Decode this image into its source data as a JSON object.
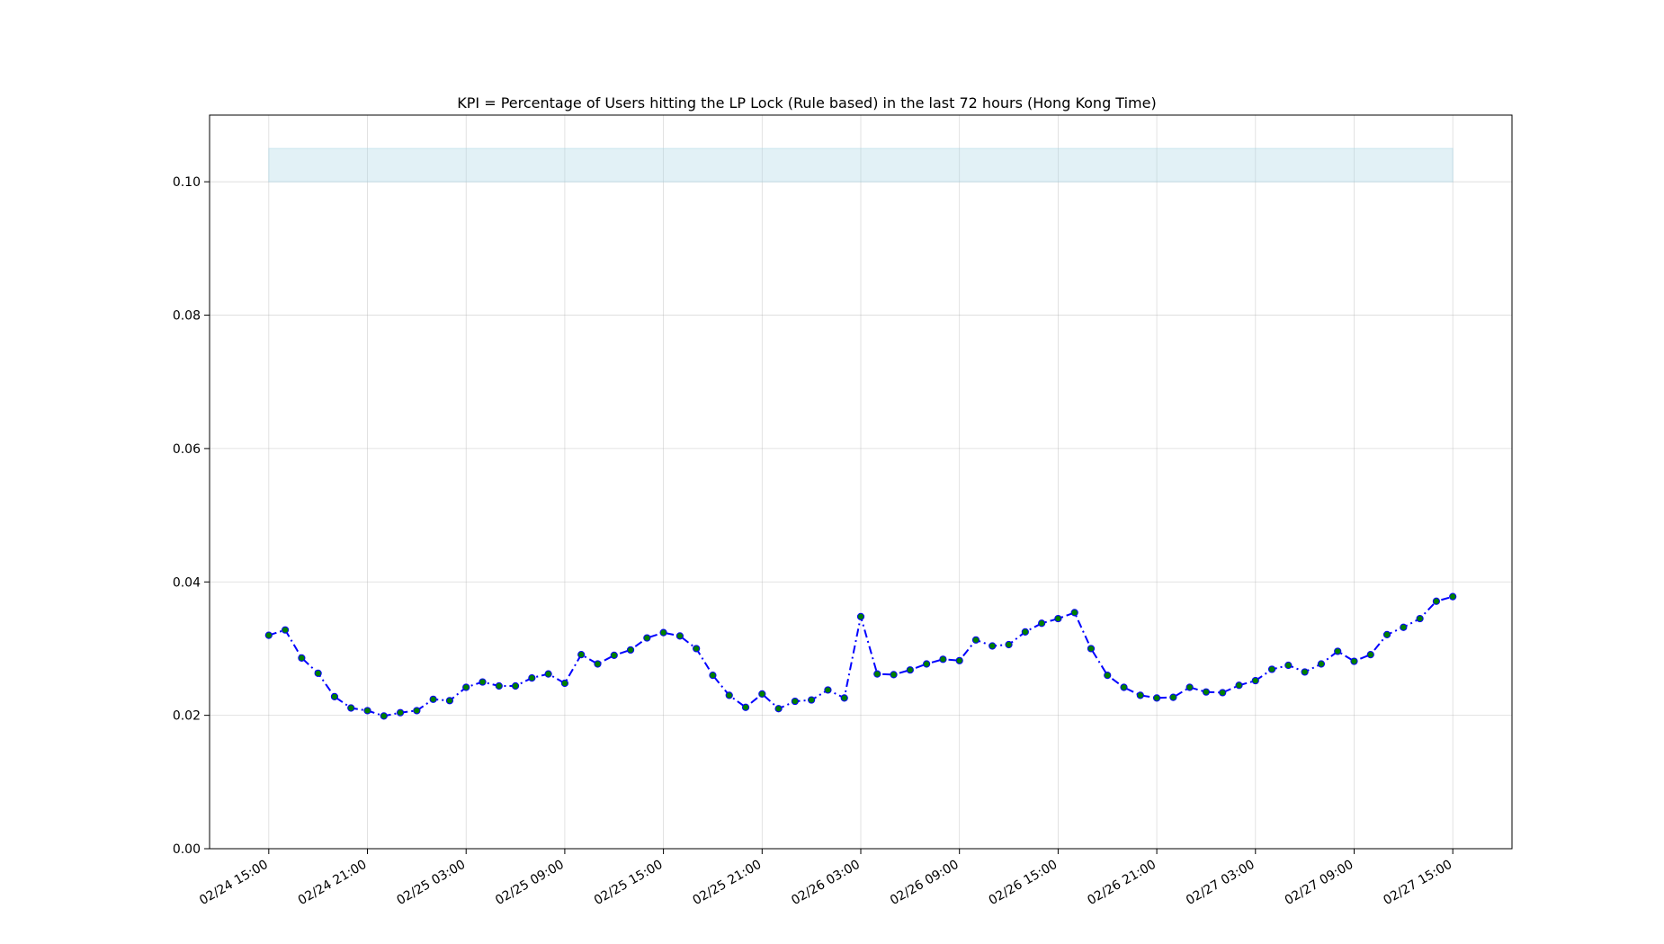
{
  "chart_data": {
    "type": "line",
    "title": "KPI = Percentage of Users hitting the LP Lock (Rule based) in the last 72 hours (Hong Kong Time)",
    "xlabel": "",
    "ylabel": "",
    "ylim": [
      0.0,
      0.11
    ],
    "xlim_hours": [
      -3.6,
      75.6
    ],
    "grid": true,
    "legend": "none",
    "band": {
      "y": [
        0.1,
        0.105
      ],
      "x_hours": [
        0,
        72
      ],
      "color": "#add8e6"
    },
    "line_color": "#0000ff",
    "marker_color": "#008000",
    "x_start": "02/24 15:00",
    "y_ticks": [
      {
        "value": 0.0,
        "label": "0.00"
      },
      {
        "value": 0.02,
        "label": "0.02"
      },
      {
        "value": 0.04,
        "label": "0.04"
      },
      {
        "value": 0.06,
        "label": "0.06"
      },
      {
        "value": 0.08,
        "label": "0.08"
      },
      {
        "value": 0.1,
        "label": "0.10"
      }
    ],
    "x_ticks": [
      {
        "hour": 0,
        "label": "02/24 15:00"
      },
      {
        "hour": 6,
        "label": "02/24 21:00"
      },
      {
        "hour": 12,
        "label": "02/25 03:00"
      },
      {
        "hour": 18,
        "label": "02/25 09:00"
      },
      {
        "hour": 24,
        "label": "02/25 15:00"
      },
      {
        "hour": 30,
        "label": "02/25 21:00"
      },
      {
        "hour": 36,
        "label": "02/26 03:00"
      },
      {
        "hour": 42,
        "label": "02/26 09:00"
      },
      {
        "hour": 48,
        "label": "02/26 15:00"
      },
      {
        "hour": 54,
        "label": "02/26 21:00"
      },
      {
        "hour": 60,
        "label": "02/27 03:00"
      },
      {
        "hour": 66,
        "label": "02/27 09:00"
      },
      {
        "hour": 72,
        "label": "02/27 15:00"
      }
    ],
    "series": [
      {
        "values": [
          0.032,
          0.0328,
          0.0286,
          0.0263,
          0.0228,
          0.0211,
          0.0207,
          0.0199,
          0.0204,
          0.0207,
          0.0224,
          0.0222,
          0.0242,
          0.025,
          0.0244,
          0.0244,
          0.0256,
          0.0262,
          0.0248,
          0.0291,
          0.0277,
          0.029,
          0.0298,
          0.0316,
          0.0324,
          0.0319,
          0.03,
          0.026,
          0.023,
          0.0212,
          0.0232,
          0.021,
          0.0221,
          0.0223,
          0.0238,
          0.0226,
          0.0348,
          0.0262,
          0.0261,
          0.0268,
          0.0277,
          0.0284,
          0.0282,
          0.0313,
          0.0304,
          0.0306,
          0.0325,
          0.0338,
          0.0345,
          0.0354,
          0.03,
          0.026,
          0.0242,
          0.023,
          0.0226,
          0.0227,
          0.0242,
          0.0235,
          0.0234,
          0.0245,
          0.0252,
          0.0269,
          0.0275,
          0.0265,
          0.0277,
          0.0296,
          0.0281,
          0.0291,
          0.0321,
          0.0332,
          0.0345,
          0.0371,
          0.0378
        ]
      }
    ]
  }
}
